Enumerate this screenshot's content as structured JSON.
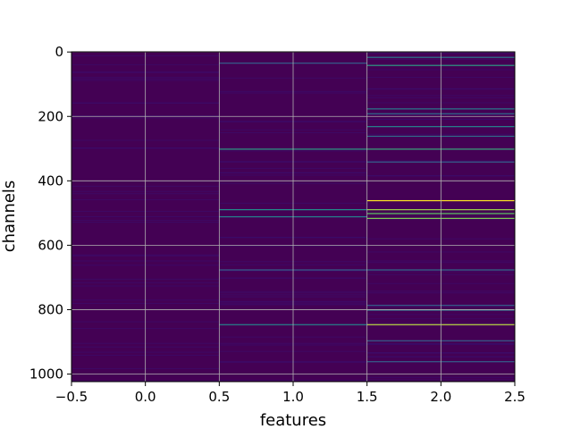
{
  "chart_data": {
    "type": "heatmap",
    "title": "",
    "xlabel": "features",
    "ylabel": "channels",
    "xlim": [
      -0.5,
      2.5
    ],
    "ylim": [
      1023.5,
      -0.5
    ],
    "y_inverted": true,
    "n_rows": 1024,
    "columns": [
      0,
      1,
      2
    ],
    "grid": true,
    "colormap": "viridis",
    "base_color": "#440154",
    "xticks": [
      -0.5,
      0.0,
      0.5,
      1.0,
      1.5,
      2.0,
      2.5
    ],
    "xtick_labels": [
      "−0.5",
      "0.0",
      "0.5",
      "1.0",
      "1.5",
      "2.0",
      "2.5"
    ],
    "yticks": [
      0,
      200,
      400,
      600,
      800,
      1000
    ],
    "ytick_labels": [
      "0",
      "200",
      "400",
      "600",
      "800",
      "1000"
    ],
    "highlights": [
      {
        "column": 1,
        "row": 33,
        "value": 0.3
      },
      {
        "column": 1,
        "row": 300,
        "value": 0.55
      },
      {
        "column": 1,
        "row": 488,
        "value": 0.5
      },
      {
        "column": 1,
        "row": 510,
        "value": 0.45
      },
      {
        "column": 1,
        "row": 675,
        "value": 0.3
      },
      {
        "column": 1,
        "row": 845,
        "value": 0.45
      },
      {
        "column": 2,
        "row": 15,
        "value": 0.4
      },
      {
        "column": 2,
        "row": 40,
        "value": 0.55
      },
      {
        "column": 2,
        "row": 175,
        "value": 0.4
      },
      {
        "column": 2,
        "row": 190,
        "value": 0.35
      },
      {
        "column": 2,
        "row": 230,
        "value": 0.45
      },
      {
        "column": 2,
        "row": 260,
        "value": 0.35
      },
      {
        "column": 2,
        "row": 300,
        "value": 0.6
      },
      {
        "column": 2,
        "row": 340,
        "value": 0.3
      },
      {
        "column": 2,
        "row": 460,
        "value": 1.0
      },
      {
        "column": 2,
        "row": 488,
        "value": 0.85
      },
      {
        "column": 2,
        "row": 500,
        "value": 0.75
      },
      {
        "column": 2,
        "row": 515,
        "value": 0.8
      },
      {
        "column": 2,
        "row": 675,
        "value": 0.35
      },
      {
        "column": 2,
        "row": 785,
        "value": 0.3
      },
      {
        "column": 2,
        "row": 800,
        "value": 0.35
      },
      {
        "column": 2,
        "row": 845,
        "value": 0.9
      },
      {
        "column": 2,
        "row": 895,
        "value": 0.3
      },
      {
        "column": 2,
        "row": 960,
        "value": 0.3
      }
    ]
  }
}
